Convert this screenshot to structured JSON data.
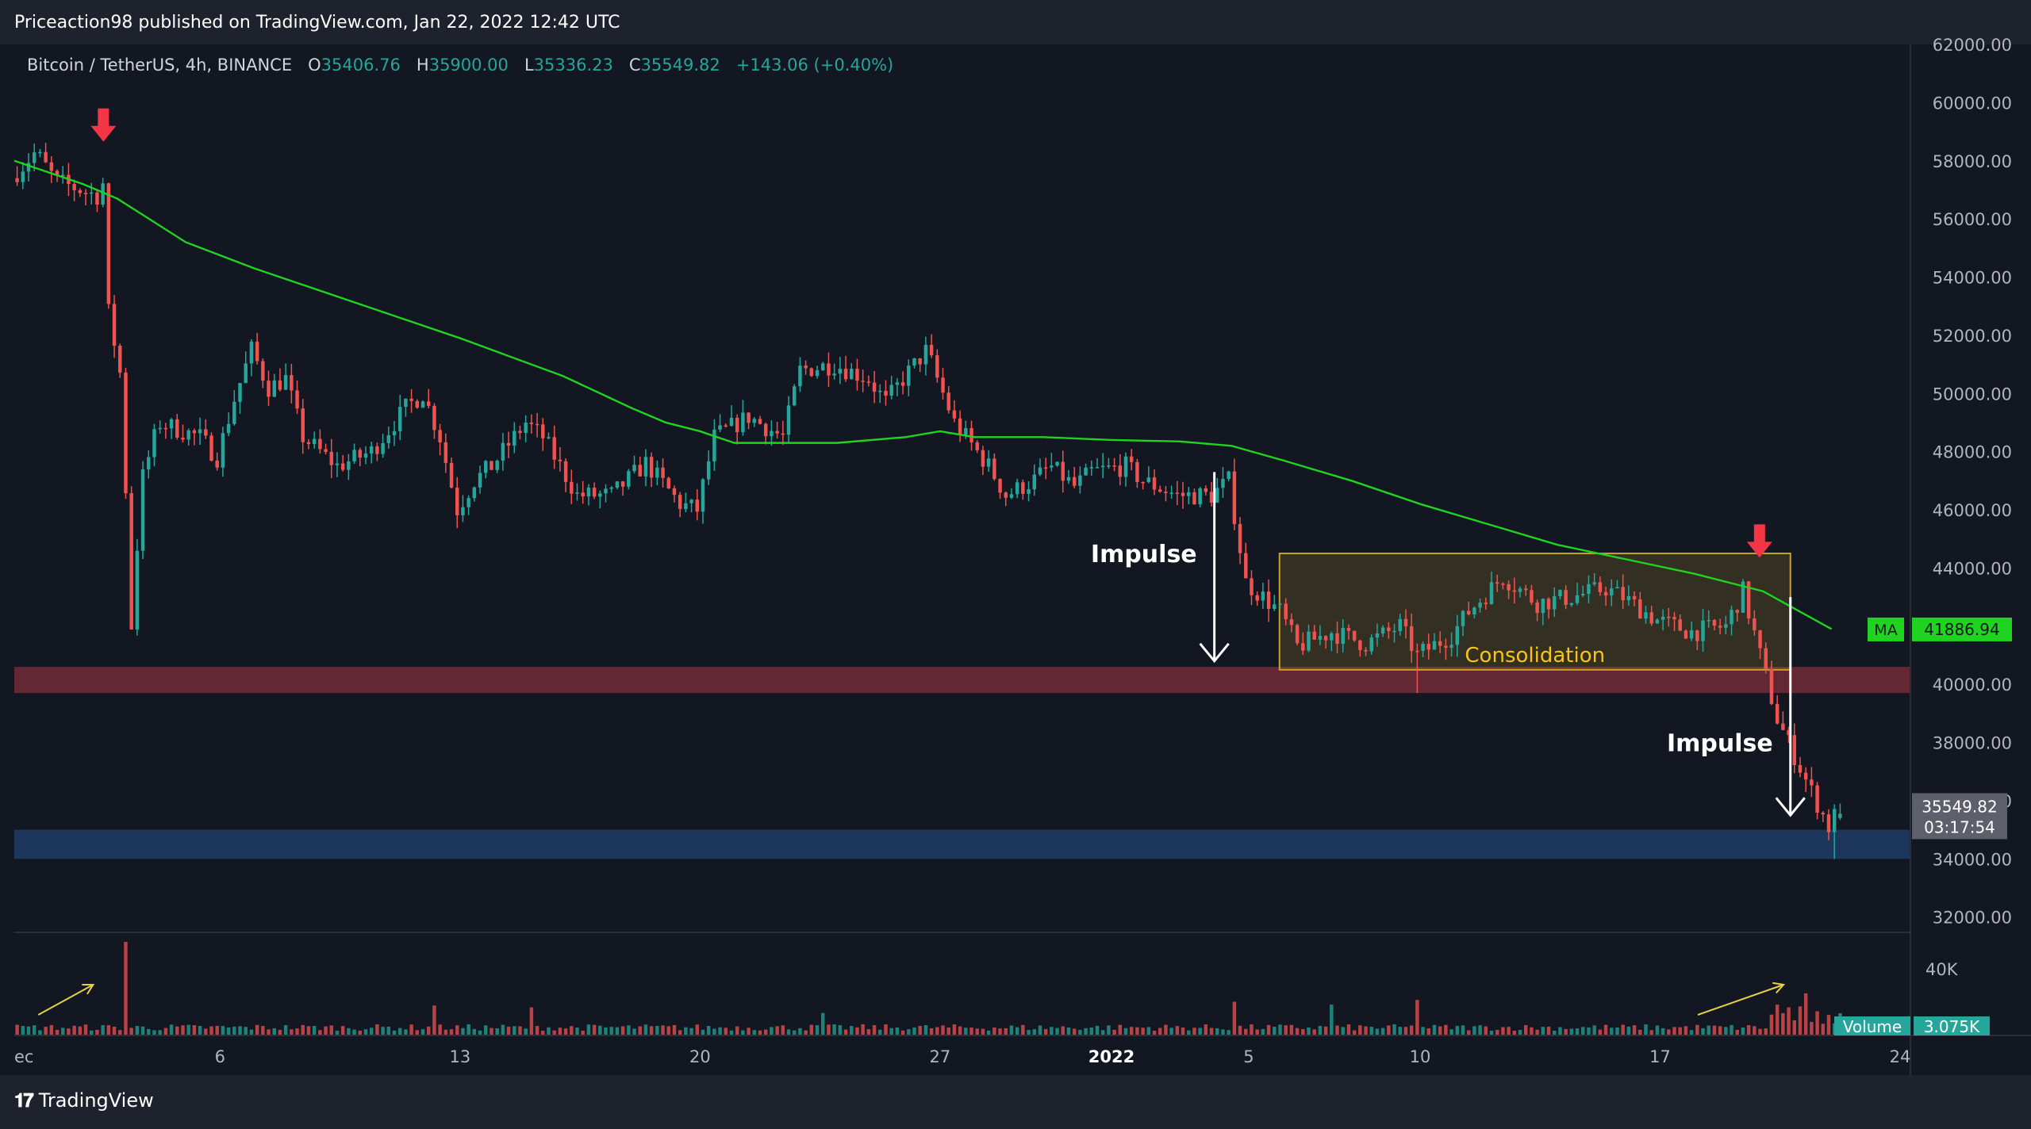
{
  "header": {
    "published_line": "Priceaction98 published on TradingView.com, Jan 22, 2022 12:42 UTC"
  },
  "legend": {
    "symbol": "Bitcoin / TetherUS, 4h, BINANCE",
    "o_label": "O",
    "o_value": "35406.76",
    "h_label": "H",
    "h_value": "35900.00",
    "l_label": "L",
    "l_value": "35336.23",
    "c_label": "C",
    "c_value": "35549.82",
    "change": "+143.06 (+0.40%)"
  },
  "brand": {
    "name": "TradingView",
    "logo_icon": "tradingview-logo-icon"
  },
  "colors": {
    "background": "#131722",
    "up": "#26a69a",
    "down": "#ef5350",
    "ma": "#21d321",
    "resistance_zone": "#6e2a37",
    "support_zone": "#1f3b63",
    "consolidation": "#c9a227",
    "arrow_red": "#f23645"
  },
  "chart_data": {
    "type": "candlestick",
    "symbol": "Bitcoin / TetherUS",
    "interval": "4h",
    "exchange": "BINANCE",
    "y_axis": {
      "ylim": [
        31500,
        62000
      ],
      "ticks": [
        "62000.00",
        "60000.00",
        "58000.00",
        "56000.00",
        "54000.00",
        "52000.00",
        "50000.00",
        "48000.00",
        "46000.00",
        "44000.00",
        "40000.00",
        "38000.00",
        "36000.00",
        "34000.00",
        "32000.00"
      ]
    },
    "x_axis": {
      "ticks": [
        {
          "label": "ec",
          "day": 0
        },
        {
          "label": "6",
          "day": 6
        },
        {
          "label": "13",
          "day": 13
        },
        {
          "label": "20",
          "day": 20
        },
        {
          "label": "27",
          "day": 27
        },
        {
          "label": "2022",
          "day": 32
        },
        {
          "label": "5",
          "day": 36
        },
        {
          "label": "10",
          "day": 41
        },
        {
          "label": "17",
          "day": 48
        },
        {
          "label": "24",
          "day": 55
        }
      ],
      "day_range": [
        0,
        55.3
      ]
    },
    "price_path": [
      [
        0.0,
        57400
      ],
      [
        0.7,
        58300
      ],
      [
        1.3,
        57300
      ],
      [
        2.5,
        56800
      ],
      [
        2.7,
        57300
      ],
      [
        2.8,
        53000
      ],
      [
        3.2,
        50500
      ],
      [
        3.5,
        42000
      ],
      [
        3.8,
        47000
      ],
      [
        4.3,
        49000
      ],
      [
        5.5,
        48500
      ],
      [
        6.0,
        47800
      ],
      [
        6.5,
        49800
      ],
      [
        7.0,
        51500
      ],
      [
        7.5,
        50200
      ],
      [
        8.0,
        50500
      ],
      [
        8.5,
        48500
      ],
      [
        9.5,
        47500
      ],
      [
        10.5,
        48000
      ],
      [
        11.5,
        49500
      ],
      [
        12.0,
        50000
      ],
      [
        12.5,
        48500
      ],
      [
        13.0,
        46000
      ],
      [
        13.5,
        47000
      ],
      [
        14.0,
        47500
      ],
      [
        15.0,
        49000
      ],
      [
        15.5,
        48500
      ],
      [
        16.5,
        46500
      ],
      [
        17.5,
        46500
      ],
      [
        18.5,
        47600
      ],
      [
        19.5,
        46200
      ],
      [
        20.0,
        46000
      ],
      [
        20.5,
        48500
      ],
      [
        21.5,
        49200
      ],
      [
        22.5,
        48500
      ],
      [
        23.0,
        50800
      ],
      [
        24.0,
        51000
      ],
      [
        25.0,
        50500
      ],
      [
        25.5,
        49700
      ],
      [
        26.0,
        50500
      ],
      [
        26.7,
        51500
      ],
      [
        27.0,
        50500
      ],
      [
        27.5,
        49000
      ],
      [
        28.5,
        47500
      ],
      [
        29.0,
        46500
      ],
      [
        29.8,
        47000
      ],
      [
        30.3,
        47500
      ],
      [
        31.0,
        46800
      ],
      [
        31.5,
        47300
      ],
      [
        32.5,
        47500
      ],
      [
        33.0,
        47000
      ],
      [
        34.0,
        46500
      ],
      [
        35.0,
        46500
      ],
      [
        35.5,
        47000
      ],
      [
        36.0,
        43500
      ],
      [
        37.0,
        42500
      ],
      [
        37.5,
        41300
      ],
      [
        38.5,
        41800
      ],
      [
        39.5,
        41400
      ],
      [
        40.5,
        42000
      ],
      [
        41.0,
        41000
      ],
      [
        42.0,
        41700
      ],
      [
        42.5,
        42500
      ],
      [
        43.5,
        43700
      ],
      [
        44.5,
        42800
      ],
      [
        45.5,
        43000
      ],
      [
        46.5,
        43300
      ],
      [
        47.0,
        43000
      ],
      [
        48.0,
        42200
      ],
      [
        49.0,
        41800
      ],
      [
        50.0,
        42000
      ],
      [
        50.5,
        43200
      ],
      [
        51.0,
        41000
      ],
      [
        51.5,
        38800
      ],
      [
        52.5,
        36300
      ],
      [
        53.0,
        35100
      ],
      [
        53.2,
        35550
      ]
    ],
    "last_candle": {
      "open": 35406.76,
      "high": 35900.0,
      "low": 35336.23,
      "close": 35549.82
    },
    "moving_average": {
      "label": "MA",
      "last_value": "41886.94",
      "points": [
        [
          0.0,
          58000
        ],
        [
          2.0,
          57200
        ],
        [
          3.0,
          56700
        ],
        [
          5.0,
          55200
        ],
        [
          7.0,
          54300
        ],
        [
          10.0,
          53100
        ],
        [
          13.0,
          51900
        ],
        [
          16.0,
          50600
        ],
        [
          18.0,
          49500
        ],
        [
          19.0,
          49000
        ],
        [
          20.0,
          48700
        ],
        [
          21.0,
          48300
        ],
        [
          22.0,
          48300
        ],
        [
          24.0,
          48300
        ],
        [
          26.0,
          48500
        ],
        [
          27.0,
          48700
        ],
        [
          28.0,
          48500
        ],
        [
          30.0,
          48500
        ],
        [
          32.0,
          48400
        ],
        [
          34.0,
          48350
        ],
        [
          35.5,
          48200
        ],
        [
          37.0,
          47700
        ],
        [
          39.0,
          47000
        ],
        [
          41.0,
          46200
        ],
        [
          43.0,
          45500
        ],
        [
          45.0,
          44800
        ],
        [
          47.0,
          44300
        ],
        [
          49.0,
          43800
        ],
        [
          51.0,
          43200
        ],
        [
          53.0,
          41900
        ]
      ]
    },
    "zones": [
      {
        "name": "resistance-zone",
        "y_top": 40600,
        "y_bottom": 39700
      },
      {
        "name": "support-zone",
        "y_top": 35000,
        "y_bottom": 34000
      },
      {
        "name": "consolidation-box",
        "label": "Consolidation",
        "x_start": 36.9,
        "x_end": 51.8,
        "y_top": 44500,
        "y_bottom": 40500
      }
    ],
    "annotations": [
      {
        "text": "Impulse",
        "type": "white-arrow",
        "x": 35.0,
        "y_from": 47300,
        "y_to": 40800
      },
      {
        "text": "Impulse",
        "type": "white-arrow",
        "x": 51.8,
        "y_from": 43000,
        "y_to": 35500
      },
      {
        "type": "red-arrow",
        "x": 2.6,
        "y": 59200
      },
      {
        "type": "red-arrow",
        "x": 50.9,
        "y": 44900
      }
    ],
    "price_label": {
      "value": "35549.82",
      "countdown": "03:17:54"
    },
    "volume": {
      "label": "Volume",
      "last_value": "3.075K",
      "axis_tick": "40K",
      "spikes": [
        [
          3.2,
          1.0
        ],
        [
          12.2,
          0.32
        ],
        [
          15.0,
          0.3
        ],
        [
          23.5,
          0.24
        ],
        [
          35.5,
          0.36
        ],
        [
          38.4,
          0.33
        ],
        [
          40.9,
          0.38
        ],
        [
          51.3,
          0.33
        ],
        [
          52.2,
          0.45
        ]
      ],
      "trend_arrows": [
        {
          "x_from": 0.7,
          "x_to": 2.3
        },
        {
          "x_from": 49.1,
          "x_to": 51.6
        }
      ]
    }
  }
}
